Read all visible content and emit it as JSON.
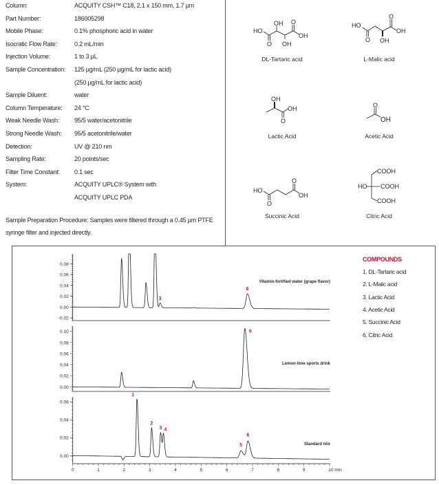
{
  "conditions": [
    {
      "label": "Column:",
      "value": "ACQUITY CSH™ C18, 2.1 x 150 mm, 1.7 µm"
    },
    {
      "label": "Part Number:",
      "value": "186005298"
    },
    {
      "label": "Mobile Phase:",
      "value": "0.1% phosphoric acid in water"
    },
    {
      "label": "Isocratic Flow Rate:",
      "value": "0.2 mL/min"
    },
    {
      "label": "Injection Volume:",
      "value": "1 to 3 µL"
    },
    {
      "label": "Sample Concentration:",
      "value": "125 µg/mL (250 µg/mL for lactic acid)"
    },
    {
      "label": "",
      "value": "(250 µg/mL for lactic acid)"
    },
    {
      "label": "Sample Diluent:",
      "value": "water"
    },
    {
      "label": "Column Temperature:",
      "value": "24 °C"
    },
    {
      "label": "Weak Needle Wash:",
      "value": "95/5 water/acetonitrile"
    },
    {
      "label": "Strong Needle Wash:",
      "value": "95/5 acetonitrile/water"
    },
    {
      "label": "Detection:",
      "value": "UV @ 210 nm"
    },
    {
      "label": "Sampling Rate:",
      "value": "20 points/sec"
    },
    {
      "label": "Filter Time Constant:",
      "value": "0.1 sec"
    },
    {
      "label": "System:",
      "value": "ACQUITY UPLC® System with"
    },
    {
      "label": "",
      "value": "ACQUITY UPLC PDA"
    }
  ],
  "sample_prep": "Sample Preparation Procedure: Samples were filtered through a 0.45 µm PTFE syringe filter and injected directly.",
  "structures": {
    "tartaric": {
      "name": "DL-Tartaric acid",
      "atoms": [
        "HO",
        "OH",
        "O",
        "OH",
        "O",
        "OH"
      ]
    },
    "malic": {
      "name": "L-Malic acid",
      "atoms": [
        "HO",
        "O",
        "OH",
        "O",
        "OH"
      ]
    },
    "lactic": {
      "name": "Lactic Acid",
      "atoms": [
        "OH",
        "OH",
        "O"
      ]
    },
    "acetic": {
      "name": "Acetic Acid",
      "atoms": [
        "O",
        "OH"
      ]
    },
    "succinic": {
      "name": "Succinic Acid",
      "atoms": [
        "HO",
        "O",
        "O",
        "OH"
      ]
    },
    "citric": {
      "name": "Citric Acid",
      "atoms": [
        "HO",
        "COOH",
        "COOH",
        "COOH"
      ]
    }
  },
  "colors": {
    "peak_label": "#c8102e",
    "trace": "#231f20"
  },
  "legend": {
    "title": "COMPOUNDS",
    "items": [
      "1. DL-Tartaric acid",
      "2. L-Malic acid",
      "3. Lactic Acid",
      "4. Acetic Acid",
      "5. Succinic Acid",
      "6. Citric Acid"
    ]
  },
  "chart_data": [
    {
      "type": "line",
      "title": "Vitamin-fortified water (grape flavor)",
      "xlim": [
        0,
        10
      ],
      "ylim": [
        -0.025,
        0.098
      ],
      "yticks": [
        "0.08",
        "0.06",
        "0.04",
        "0.02",
        "0.00",
        "-0.02"
      ],
      "ytick_values": [
        0.08,
        0.06,
        0.04,
        0.02,
        0,
        -0.02
      ],
      "baseline": [
        0,
        -0.004
      ],
      "peaks": [
        {
          "rt": 1.9,
          "height": 0.09,
          "label": ""
        },
        {
          "rt": 2.2,
          "height": 0.15,
          "label": ""
        },
        {
          "rt": 2.85,
          "height": 0.046,
          "label": ""
        },
        {
          "rt": 3.2,
          "height": 0.15,
          "label": ""
        },
        {
          "rt": 3.4,
          "height": 0.009,
          "label": "3"
        },
        {
          "rt": 4.7,
          "height": 0.001,
          "label": ""
        },
        {
          "rt": 6.8,
          "height": 0.027,
          "label": "6"
        }
      ]
    },
    {
      "type": "line",
      "title": "Lemon-lime sports drink",
      "xlim": [
        0,
        10
      ],
      "ylim": [
        -0.008,
        0.112
      ],
      "yticks": [
        "0.10",
        "0.08",
        "0.06",
        "0.04",
        "0.02",
        "0.00"
      ],
      "ytick_values": [
        0.1,
        0.08,
        0.06,
        0.04,
        0.02,
        0
      ],
      "baseline": [
        0,
        -0.004
      ],
      "peaks": [
        {
          "rt": 1.9,
          "height": 0.027,
          "label": ""
        },
        {
          "rt": 4.7,
          "height": 0.013,
          "label": ""
        },
        {
          "rt": 6.7,
          "height": 0.108,
          "label": "6"
        }
      ]
    },
    {
      "type": "line",
      "title": "Standard mix",
      "xlim": [
        0,
        10
      ],
      "ylim": [
        -0.009,
        0.064
      ],
      "yticks": [
        "0.06",
        "0.04",
        "0.02",
        "0.00"
      ],
      "ytick_values": [
        0.06,
        0.04,
        0.02,
        0
      ],
      "baseline": [
        0,
        -0.004
      ],
      "peaks": [
        {
          "rt": 1.95,
          "height": -0.004,
          "label": ""
        },
        {
          "rt": 2.5,
          "height": 0.064,
          "label": "1"
        },
        {
          "rt": 3.07,
          "height": 0.032,
          "label": "2"
        },
        {
          "rt": 3.42,
          "height": 0.027,
          "label": "3"
        },
        {
          "rt": 3.53,
          "height": 0.025,
          "label": "4"
        },
        {
          "rt": 6.55,
          "height": 0.008,
          "label": "5"
        },
        {
          "rt": 6.82,
          "height": 0.019,
          "label": "6"
        }
      ],
      "xticks": [
        "0",
        "1",
        "2",
        "3",
        "4",
        "5",
        "6",
        "7",
        "8",
        "9",
        "10 min"
      ]
    }
  ]
}
